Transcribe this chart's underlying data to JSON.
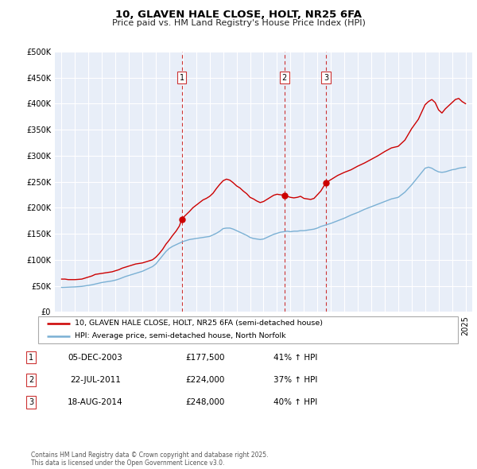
{
  "title": "10, GLAVEN HALE CLOSE, HOLT, NR25 6FA",
  "subtitle": "Price paid vs. HM Land Registry's House Price Index (HPI)",
  "legend_line1": "10, GLAVEN HALE CLOSE, HOLT, NR25 6FA (semi-detached house)",
  "legend_line2": "HPI: Average price, semi-detached house, North Norfolk",
  "footer": "Contains HM Land Registry data © Crown copyright and database right 2025.\nThis data is licensed under the Open Government Licence v3.0.",
  "transactions": [
    {
      "num": 1,
      "date": "05-DEC-2003",
      "price": 177500,
      "year": 2003.92,
      "pct": "41%",
      "dir": "↑"
    },
    {
      "num": 2,
      "date": "22-JUL-2011",
      "price": 224000,
      "year": 2011.55,
      "pct": "37%",
      "dir": "↑"
    },
    {
      "num": 3,
      "date": "18-AUG-2014",
      "price": 248000,
      "year": 2014.63,
      "pct": "40%",
      "dir": "↑"
    }
  ],
  "property_color": "#cc0000",
  "hpi_color": "#7ab0d4",
  "vline_color": "#cc3333",
  "bg_color": "#e8eef8",
  "grid_color": "#ffffff",
  "ylim": [
    0,
    500000
  ],
  "yticks": [
    0,
    50000,
    100000,
    150000,
    200000,
    250000,
    300000,
    350000,
    400000,
    450000,
    500000
  ],
  "xlim": [
    1994.5,
    2025.5
  ],
  "property_data": {
    "x": [
      1995.0,
      1995.25,
      1995.5,
      1995.75,
      1996.0,
      1996.25,
      1996.5,
      1996.75,
      1997.0,
      1997.25,
      1997.5,
      1997.75,
      1998.0,
      1998.25,
      1998.5,
      1998.75,
      1999.0,
      1999.25,
      1999.5,
      1999.75,
      2000.0,
      2000.25,
      2000.5,
      2000.75,
      2001.0,
      2001.25,
      2001.5,
      2001.75,
      2002.0,
      2002.25,
      2002.5,
      2002.75,
      2003.0,
      2003.25,
      2003.5,
      2003.75,
      2003.92,
      2004.1,
      2004.5,
      2004.75,
      2005.0,
      2005.25,
      2005.5,
      2005.75,
      2006.0,
      2006.25,
      2006.5,
      2006.75,
      2007.0,
      2007.25,
      2007.5,
      2007.75,
      2008.0,
      2008.25,
      2008.5,
      2008.75,
      2009.0,
      2009.25,
      2009.5,
      2009.75,
      2010.0,
      2010.25,
      2010.5,
      2010.75,
      2011.0,
      2011.25,
      2011.55,
      2011.75,
      2012.0,
      2012.25,
      2012.5,
      2012.75,
      2013.0,
      2013.25,
      2013.5,
      2013.75,
      2014.0,
      2014.25,
      2014.63,
      2015.0,
      2015.5,
      2016.0,
      2016.5,
      2017.0,
      2017.5,
      2018.0,
      2018.5,
      2019.0,
      2019.5,
      2020.0,
      2020.5,
      2021.0,
      2021.5,
      2022.0,
      2022.25,
      2022.5,
      2022.75,
      2023.0,
      2023.25,
      2023.5,
      2023.75,
      2024.0,
      2024.25,
      2024.5,
      2024.75,
      2025.0
    ],
    "y": [
      63000,
      63000,
      62000,
      62000,
      62000,
      62500,
      63000,
      65000,
      67000,
      69000,
      72000,
      73000,
      74000,
      75000,
      76000,
      77000,
      79000,
      81000,
      84000,
      86000,
      88000,
      90000,
      92000,
      93000,
      94000,
      96000,
      98000,
      100000,
      105000,
      112000,
      120000,
      130000,
      138000,
      147000,
      155000,
      165000,
      177500,
      183000,
      193000,
      200000,
      205000,
      210000,
      215000,
      218000,
      222000,
      228000,
      237000,
      245000,
      252000,
      255000,
      253000,
      248000,
      242000,
      238000,
      232000,
      227000,
      220000,
      217000,
      213000,
      210000,
      212000,
      216000,
      220000,
      224000,
      226000,
      225000,
      224000,
      222000,
      220000,
      219000,
      220000,
      222000,
      218000,
      217000,
      216000,
      218000,
      225000,
      232000,
      248000,
      254000,
      262000,
      268000,
      273000,
      280000,
      286000,
      293000,
      300000,
      308000,
      315000,
      318000,
      330000,
      352000,
      370000,
      398000,
      404000,
      408000,
      402000,
      388000,
      382000,
      390000,
      396000,
      402000,
      408000,
      410000,
      404000,
      400000
    ]
  },
  "hpi_data": {
    "x": [
      1995.0,
      1995.25,
      1995.5,
      1995.75,
      1996.0,
      1996.25,
      1996.5,
      1996.75,
      1997.0,
      1997.25,
      1997.5,
      1997.75,
      1998.0,
      1998.25,
      1998.5,
      1998.75,
      1999.0,
      1999.25,
      1999.5,
      1999.75,
      2000.0,
      2000.25,
      2000.5,
      2000.75,
      2001.0,
      2001.25,
      2001.5,
      2001.75,
      2002.0,
      2002.25,
      2002.5,
      2002.75,
      2003.0,
      2003.25,
      2003.5,
      2003.75,
      2004.0,
      2004.25,
      2004.5,
      2004.75,
      2005.0,
      2005.25,
      2005.5,
      2005.75,
      2006.0,
      2006.25,
      2006.5,
      2006.75,
      2007.0,
      2007.25,
      2007.5,
      2007.75,
      2008.0,
      2008.25,
      2008.5,
      2008.75,
      2009.0,
      2009.25,
      2009.5,
      2009.75,
      2010.0,
      2010.25,
      2010.5,
      2010.75,
      2011.0,
      2011.25,
      2011.5,
      2011.75,
      2012.0,
      2012.25,
      2012.5,
      2012.75,
      2013.0,
      2013.25,
      2013.5,
      2013.75,
      2014.0,
      2014.25,
      2014.5,
      2014.75,
      2015.0,
      2015.5,
      2016.0,
      2016.5,
      2017.0,
      2017.5,
      2018.0,
      2018.5,
      2019.0,
      2019.5,
      2020.0,
      2020.5,
      2021.0,
      2021.5,
      2022.0,
      2022.25,
      2022.5,
      2022.75,
      2023.0,
      2023.25,
      2023.5,
      2023.75,
      2024.0,
      2024.25,
      2024.5,
      2024.75,
      2025.0
    ],
    "y": [
      47000,
      47200,
      47500,
      47800,
      48000,
      48500,
      49000,
      50000,
      51000,
      52000,
      53500,
      55000,
      56500,
      57500,
      58500,
      59500,
      61000,
      63000,
      65500,
      68000,
      70000,
      72000,
      74000,
      76000,
      78000,
      81000,
      84000,
      87000,
      92000,
      100000,
      108000,
      116000,
      122000,
      126000,
      129000,
      132000,
      135000,
      137000,
      139000,
      140000,
      141000,
      142000,
      143000,
      144000,
      145000,
      148000,
      151000,
      155000,
      160000,
      161000,
      161000,
      159000,
      156000,
      153000,
      150000,
      147000,
      143000,
      141000,
      140000,
      139000,
      140000,
      143000,
      146000,
      149000,
      151000,
      153000,
      154000,
      155000,
      154000,
      155000,
      155000,
      156000,
      156000,
      157000,
      158000,
      159000,
      161000,
      164000,
      166000,
      168000,
      170000,
      175000,
      180000,
      186000,
      191000,
      197000,
      202000,
      207000,
      212000,
      217000,
      220000,
      230000,
      244000,
      260000,
      276000,
      278000,
      276000,
      272000,
      269000,
      268000,
      269000,
      271000,
      273000,
      274000,
      276000,
      277000,
      278000
    ]
  }
}
